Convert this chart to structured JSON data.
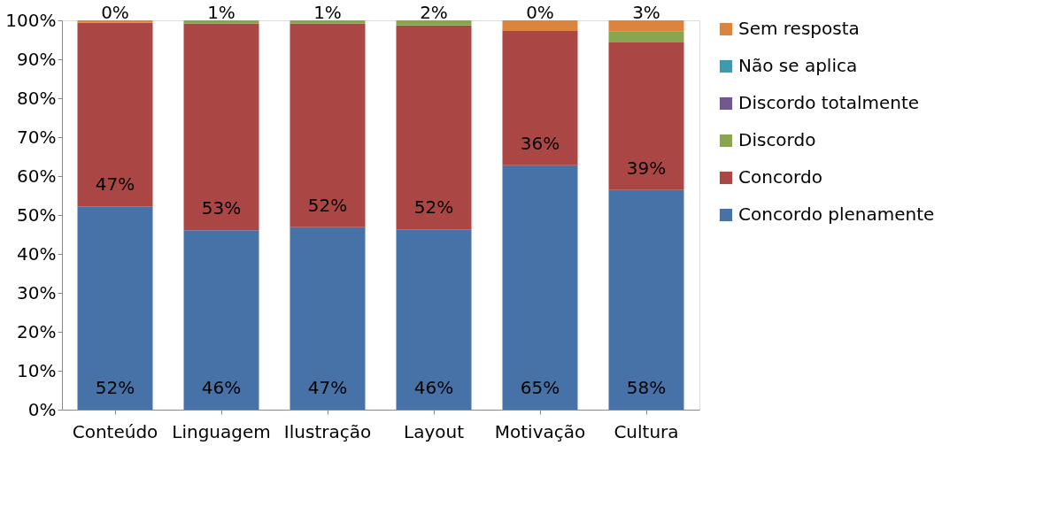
{
  "chart_data": {
    "type": "bar",
    "stacked": true,
    "categories": [
      "Conteúdo",
      "Linguagem",
      "Ilustração",
      "Layout",
      "Motivação",
      "Cultura"
    ],
    "series": [
      {
        "name": "Concordo plenamente",
        "color": "#4672a8",
        "values": [
          52.2,
          46.1,
          46.9,
          46.3,
          62.8,
          56.4
        ]
      },
      {
        "name": "Concordo",
        "color": "#aa4744",
        "values": [
          47.2,
          53.1,
          52.3,
          52.4,
          34.5,
          37.9
        ]
      },
      {
        "name": "Discordo",
        "color": "#89a54e",
        "values": [
          0,
          0.8,
          0.8,
          1.3,
          0,
          2.9
        ]
      },
      {
        "name": "Discordo totalmente",
        "color": "#71588f",
        "values": [
          0,
          0,
          0,
          0,
          0,
          0
        ]
      },
      {
        "name": "Não se aplica",
        "color": "#4198af",
        "values": [
          0,
          0,
          0,
          0,
          0,
          0
        ]
      },
      {
        "name": "Sem resposta",
        "color": "#db843d",
        "values": [
          0.6,
          0,
          0,
          0,
          2.7,
          2.8
        ]
      }
    ],
    "annotations": [
      {
        "text": "52%",
        "x": "Conteúdo",
        "y": 0
      },
      {
        "text": "46%",
        "x": "Linguagem",
        "y": 0
      },
      {
        "text": "47%",
        "x": "Ilustração",
        "y": 0
      },
      {
        "text": "46%",
        "x": "Layout",
        "y": 0
      },
      {
        "text": "65%",
        "x": "Motivação",
        "y": 0
      },
      {
        "text": "58%",
        "x": "Cultura",
        "y": 0
      },
      {
        "text": "47%",
        "x": "Conteúdo",
        "y": 52.2
      },
      {
        "text": "53%",
        "x": "Linguagem",
        "y": 46.1
      },
      {
        "text": "52%",
        "x": "Ilustração",
        "y": 46.9
      },
      {
        "text": "52%",
        "x": "Layout",
        "y": 46.3
      },
      {
        "text": "36%",
        "x": "Motivação",
        "y": 62.8
      },
      {
        "text": "39%",
        "x": "Cultura",
        "y": 56.4
      },
      {
        "text": "0%",
        "x": "Conteúdo",
        "y": 100
      },
      {
        "text": "1%",
        "x": "Linguagem",
        "y": 100
      },
      {
        "text": "1%",
        "x": "Ilustração",
        "y": 100
      },
      {
        "text": "2%",
        "x": "Layout",
        "y": 100
      },
      {
        "text": "0%",
        "x": "Motivação",
        "y": 100
      },
      {
        "text": "3%",
        "x": "Cultura",
        "y": 100
      }
    ],
    "ylim": [
      0,
      100
    ],
    "yticks": [
      {
        "value": 0,
        "label": "0%"
      },
      {
        "value": 10,
        "label": "10%"
      },
      {
        "value": 20,
        "label": "20%"
      },
      {
        "value": 30,
        "label": "30%"
      },
      {
        "value": 40,
        "label": "40%"
      },
      {
        "value": 50,
        "label": "50%"
      },
      {
        "value": 60,
        "label": "60%"
      },
      {
        "value": 70,
        "label": "70%"
      },
      {
        "value": 80,
        "label": "80%"
      },
      {
        "value": 90,
        "label": "90%"
      },
      {
        "value": 100,
        "label": "100%"
      }
    ],
    "grid": false,
    "legend": "right"
  }
}
